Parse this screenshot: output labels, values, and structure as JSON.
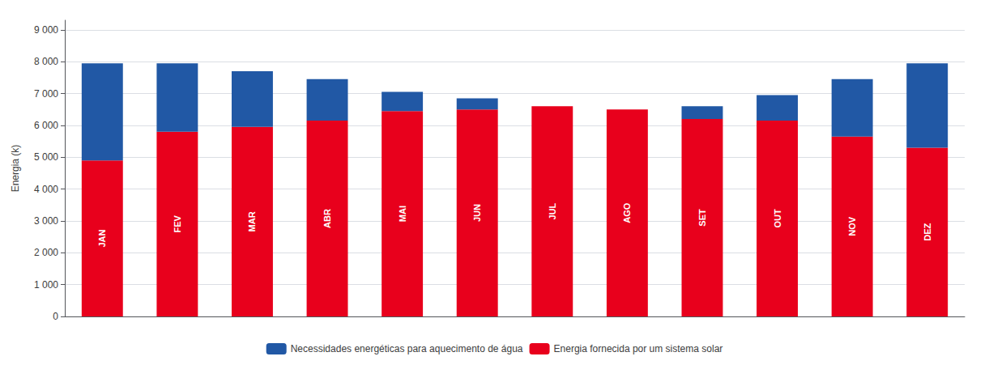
{
  "chart_data": {
    "type": "bar",
    "stacked": true,
    "categories": [
      "JAN",
      "FEV",
      "MAR",
      "ABR",
      "MAI",
      "JUN",
      "JUL",
      "AGO",
      "SET",
      "OUT",
      "NOV",
      "DEZ"
    ],
    "series": [
      {
        "name": "Energia fornecida por um sistema solar",
        "color": "#e8001c",
        "values": [
          4900,
          5800,
          5950,
          6150,
          6450,
          6500,
          6600,
          6500,
          6200,
          6150,
          5650,
          5300
        ]
      },
      {
        "name": "Necessidades energéticas para aquecimento de água",
        "color": "#2158a5",
        "values": [
          3050,
          2150,
          1750,
          1300,
          600,
          350,
          0,
          0,
          400,
          800,
          1800,
          2650
        ]
      }
    ],
    "ylabel": "Energia (k)",
    "ylim": [
      0,
      9300
    ],
    "yticks": [
      0,
      {
        "value": 1000,
        "label": "1 000"
      },
      {
        "value": 2000,
        "label": "2 000"
      },
      {
        "value": 3000,
        "label": "3 000"
      },
      {
        "value": 4000,
        "label": "4 000"
      },
      {
        "value": 5000,
        "label": "5 000"
      },
      {
        "value": 6000,
        "label": "6 000"
      },
      {
        "value": 7000,
        "label": "7 000"
      },
      {
        "value": 8000,
        "label": "8 000"
      },
      {
        "value": 9000,
        "label": "9 000"
      }
    ],
    "grid": true,
    "legend": "bottom",
    "tick_labels": "y"
  }
}
